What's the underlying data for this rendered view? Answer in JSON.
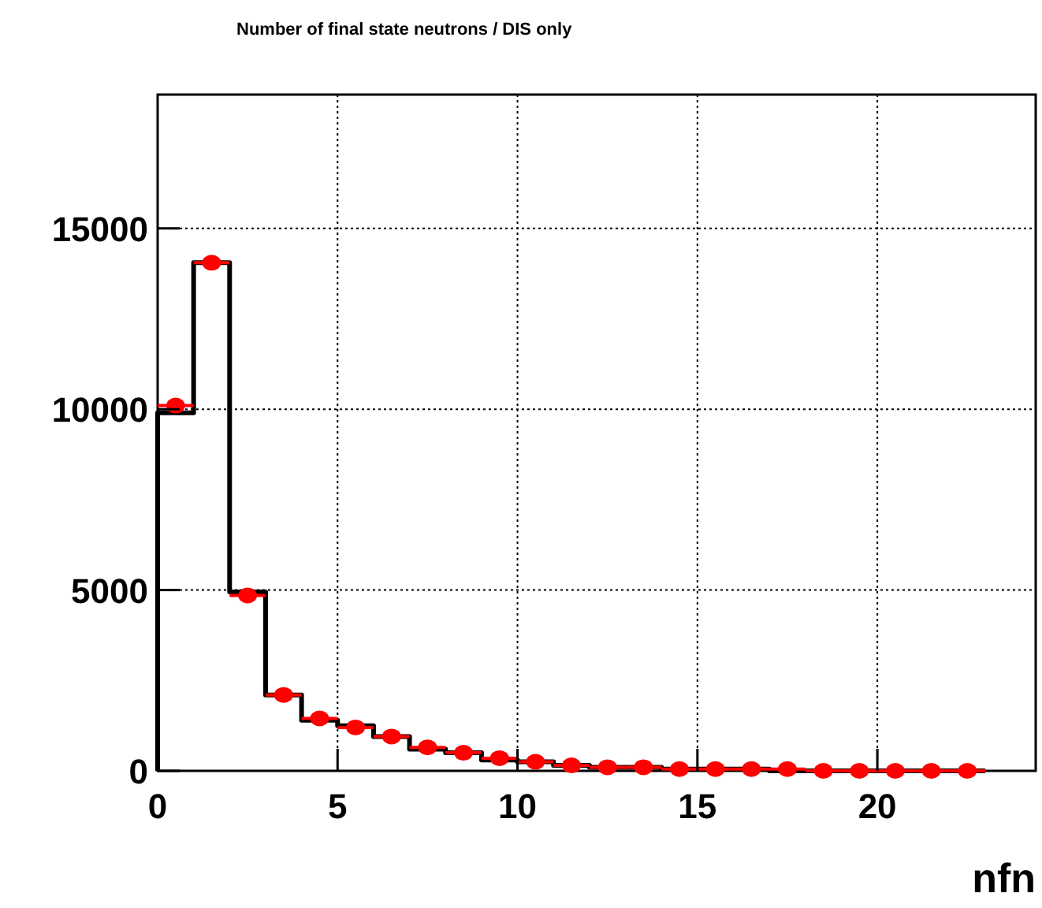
{
  "chart_data": {
    "type": "histogram",
    "title": "Number of final state neutrons / DIS only",
    "xlabel": "nfn",
    "bins": [
      0,
      1,
      2,
      3,
      4,
      5,
      6,
      7,
      8,
      9,
      10,
      11,
      12,
      13,
      14,
      15,
      16,
      17,
      18,
      19,
      20,
      21,
      22,
      23
    ],
    "series": [
      {
        "color": "#000000",
        "values": [
          9900,
          14050,
          4950,
          2100,
          1400,
          1250,
          950,
          600,
          500,
          300,
          250,
          150,
          100,
          100,
          50,
          50,
          50,
          0,
          0,
          0,
          0,
          0,
          0
        ]
      },
      {
        "type": "scatter",
        "color": "#ff0000",
        "x": [
          0.5,
          1.5,
          2.5,
          3.5,
          4.5,
          5.5,
          6.5,
          7.5,
          8.5,
          9.5,
          10.5,
          11.5,
          12.5,
          13.5,
          14.5,
          15.5,
          16.5,
          17.5,
          18.5,
          19.5,
          20.5,
          21.5,
          22.5
        ],
        "values": [
          10100,
          14050,
          4850,
          2100,
          1450,
          1200,
          950,
          650,
          500,
          350,
          250,
          150,
          100,
          100,
          50,
          50,
          50,
          50,
          0,
          0,
          0,
          0,
          0
        ],
        "xerrors": [
          0.5,
          0.5,
          0.5,
          0.5,
          0.5,
          0.5,
          0.5,
          0.5,
          0.5,
          0.5,
          0.5,
          0.5,
          0.5,
          0.5,
          0.5,
          0.5,
          0.5,
          0.5,
          0.5,
          0.5,
          0.5,
          0.5,
          0.5
        ]
      }
    ],
    "xlim": [
      0,
      24.4
    ],
    "ylim": [
      0,
      18700
    ],
    "xticks": [
      0,
      5,
      10,
      15,
      20
    ],
    "yticks": [
      0,
      5000,
      10000,
      15000
    ],
    "grid": true,
    "marker": "circle"
  }
}
